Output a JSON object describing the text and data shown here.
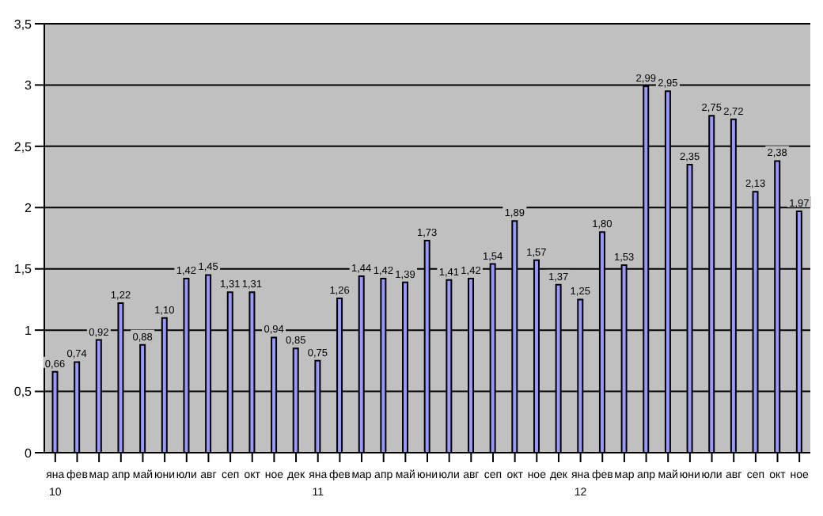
{
  "chart_data": {
    "type": "bar",
    "categories": [
      "яна\n10",
      "фев",
      "мар",
      "апр",
      "май",
      "юни",
      "юли",
      "авг",
      "сеп",
      "окт",
      "ное",
      "дек",
      "яна\n11",
      "фев",
      "мар",
      "апр",
      "май",
      "юни",
      "юли",
      "авг",
      "сеп",
      "окт",
      "ное",
      "дек",
      "яна\n12",
      "фев",
      "мар",
      "апр",
      "май",
      "юни",
      "юли",
      "авг",
      "сеп",
      "окт",
      "ное"
    ],
    "values": [
      0.66,
      0.74,
      0.92,
      1.22,
      0.88,
      1.1,
      1.42,
      1.45,
      1.31,
      1.31,
      0.94,
      0.85,
      0.75,
      1.26,
      1.44,
      1.42,
      1.39,
      1.73,
      1.41,
      1.42,
      1.54,
      1.89,
      1.57,
      1.37,
      1.25,
      1.8,
      1.53,
      2.99,
      2.95,
      2.35,
      2.75,
      2.72,
      2.13,
      2.38,
      1.97
    ],
    "value_labels": [
      "0,66",
      "0,74",
      "0,92",
      "1,22",
      "0,88",
      "1,10",
      "1,42",
      "1,45",
      "1,31",
      "1,31",
      "0,94",
      "0,85",
      "0,75",
      "1,26",
      "1,44",
      "1,42",
      "1,39",
      "1,73",
      "1,41",
      "1,42",
      "1,54",
      "1,89",
      "1,57",
      "1,37",
      "1,25",
      "1,80",
      "1,53",
      "2,99",
      "2,95",
      "2,35",
      "2,75",
      "2,72",
      "2,13",
      "2,38",
      "1,97"
    ],
    "color": "#9999ff",
    "ylim": [
      0,
      3.5
    ],
    "yticks": [
      0,
      {
        "value": 0.5,
        "label": "0,5"
      },
      1,
      {
        "value": 1.5,
        "label": "1,5"
      },
      2,
      {
        "value": 2.5,
        "label": "2,5"
      },
      3,
      {
        "value": 3.5,
        "label": "3,5"
      }
    ],
    "grid": "y"
  }
}
